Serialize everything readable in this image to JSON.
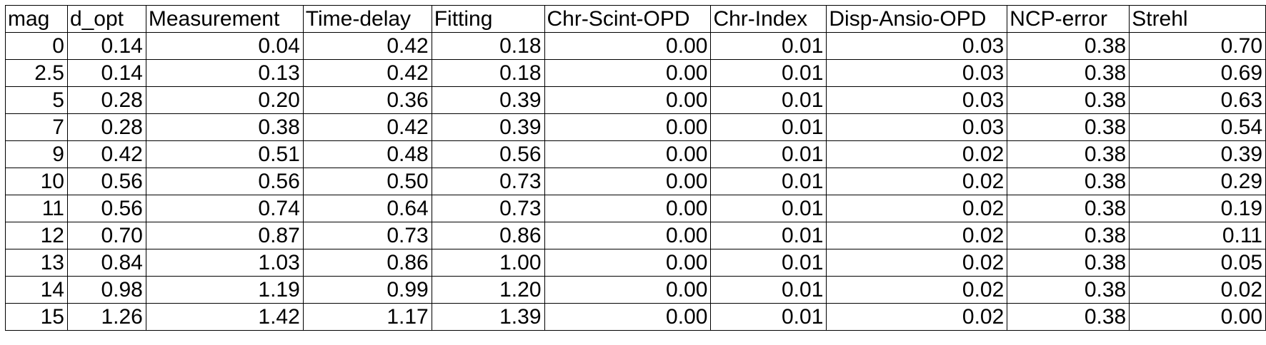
{
  "table": {
    "headers": [
      "mag",
      "d_opt",
      "Measurement",
      "Time-delay",
      "Fitting",
      "Chr-Scint-OPD",
      "Chr-Index",
      "Disp-Ansio-OPD",
      "NCP-error",
      "Strehl"
    ],
    "rows": [
      [
        "0",
        "0.14",
        "0.04",
        "0.42",
        "0.18",
        "0.00",
        "0.01",
        "0.03",
        "0.38",
        "0.70"
      ],
      [
        "2.5",
        "0.14",
        "0.13",
        "0.42",
        "0.18",
        "0.00",
        "0.01",
        "0.03",
        "0.38",
        "0.69"
      ],
      [
        "5",
        "0.28",
        "0.20",
        "0.36",
        "0.39",
        "0.00",
        "0.01",
        "0.03",
        "0.38",
        "0.63"
      ],
      [
        "7",
        "0.28",
        "0.38",
        "0.42",
        "0.39",
        "0.00",
        "0.01",
        "0.03",
        "0.38",
        "0.54"
      ],
      [
        "9",
        "0.42",
        "0.51",
        "0.48",
        "0.56",
        "0.00",
        "0.01",
        "0.02",
        "0.38",
        "0.39"
      ],
      [
        "10",
        "0.56",
        "0.56",
        "0.50",
        "0.73",
        "0.00",
        "0.01",
        "0.02",
        "0.38",
        "0.29"
      ],
      [
        "11",
        "0.56",
        "0.74",
        "0.64",
        "0.73",
        "0.00",
        "0.01",
        "0.02",
        "0.38",
        "0.19"
      ],
      [
        "12",
        "0.70",
        "0.87",
        "0.73",
        "0.86",
        "0.00",
        "0.01",
        "0.02",
        "0.38",
        "0.11"
      ],
      [
        "13",
        "0.84",
        "1.03",
        "0.86",
        "1.00",
        "0.00",
        "0.01",
        "0.02",
        "0.38",
        "0.05"
      ],
      [
        "14",
        "0.98",
        "1.19",
        "0.99",
        "1.20",
        "0.00",
        "0.01",
        "0.02",
        "0.38",
        "0.02"
      ],
      [
        "15",
        "1.26",
        "1.42",
        "1.17",
        "1.39",
        "0.00",
        "0.01",
        "0.02",
        "0.38",
        "0.00"
      ]
    ]
  }
}
